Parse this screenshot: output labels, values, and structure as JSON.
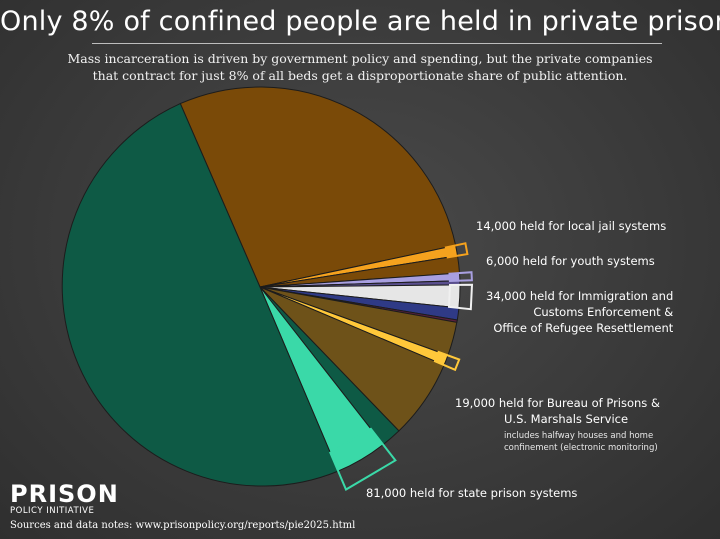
{
  "title": "Only 8% of confined people are held in private prisons",
  "subtitle_line1": "Mass incarceration is driven by government policy and spending, but the private companies",
  "subtitle_line2": "that contract for just 8% of all beds get a disproportionate share of public attention.",
  "labels": {
    "local_jail": "14,000 held for local jail systems",
    "youth": "6,000 held for youth systems",
    "ice_line1": "34,000 held for Immigration and",
    "ice_line2": "Customs Enforcement &",
    "ice_line3": "Office of Refugee Resettlement",
    "bop_line1": "19,000 held for Bureau of Prisons &",
    "bop_line2": "U.S. Marshals Service",
    "bop_note1": "includes halfway houses and home",
    "bop_note2": "confinement (electronic monitoring)",
    "state": "81,000 held for state prison systems"
  },
  "logo": {
    "name": "PRISON",
    "tagline": "POLICY INITIATIVE"
  },
  "source": "Sources and data notes: www.prisonpolicy.org/reports/pie2025.html",
  "colors": {
    "background": "#3b3b3b",
    "local_jail": "#7a4a08",
    "local_jail_private": "#f5a21e",
    "youth": "#5a4f8e",
    "youth_private": "#a89fe0",
    "ice": "#bdbdbd",
    "ice_private": "#e6e6e6",
    "unlabeled_blue": "#2f3a86",
    "unlabeled_purple": "#5a1f3e",
    "bop": "#6e5219",
    "bop_private": "#ffc83a",
    "state": "#0e5a45",
    "state_private": "#3ad9a8"
  },
  "chart_data": {
    "type": "pie",
    "title": "Only 8% of confined people are held in private prisons",
    "slices": [
      {
        "label": "Local jail systems",
        "value": 14000,
        "private": true
      },
      {
        "label": "Youth systems",
        "value": 6000,
        "private": true
      },
      {
        "label": "Immigration and Customs Enforcement & Office of Refugee Resettlement",
        "value": 34000,
        "private": true
      },
      {
        "label": "Bureau of Prisons & U.S. Marshals Service",
        "value": 19000,
        "private": true
      },
      {
        "label": "State prison systems",
        "value": 81000,
        "private": true
      }
    ],
    "private_share_percent": 8
  }
}
